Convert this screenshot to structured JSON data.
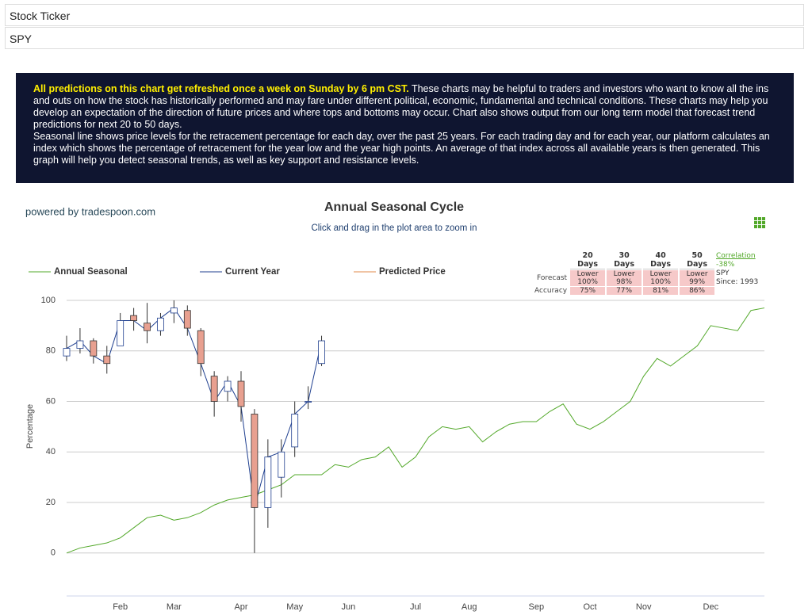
{
  "header": {
    "label": "Stock Ticker",
    "ticker": "SPY"
  },
  "banner": {
    "highlight": "All predictions on this chart get refreshed once a week on Sunday by 6 pm CST.",
    "text": "These charts may be helpful to traders and investors who want to know all the ins and outs on how the stock has historically performed and may fare under different political, economic, fundamental and technical conditions. These charts may help you develop an expectation of the direction of future prices and where tops and bottoms may occur. Chart also shows output from our long term model that forecast trend predictions for next 20 to 50 days.",
    "text2": "Seasonal line shows price levels for the retracement percentage for each day, over the past 25 years. For each trading day and for each year, our platform calculates an index which shows the percentage of retracement for the year low and the year high points. An average of that index across all available years is then generated. This graph will help you detect seasonal trends, as well as key support and resistance levels."
  },
  "credit": "powered by tradespoon.com",
  "forecast_table": {
    "columns": [
      "20 Days",
      "30 Days",
      "40 Days",
      "50 Days"
    ],
    "row_labels": [
      "Forecast",
      "Accuracy"
    ],
    "forecast": [
      [
        "Lower",
        "100%"
      ],
      [
        "Lower",
        "98%"
      ],
      [
        "Lower",
        "100%"
      ],
      [
        "Lower",
        "99%"
      ]
    ],
    "accuracy": [
      "75%",
      "77%",
      "81%",
      "86%"
    ],
    "correlation": {
      "label": "Correlation",
      "value": "-38%",
      "ticker": "SPY",
      "since": "Since: 1993"
    }
  },
  "chart_data": {
    "type": "line",
    "title": "Annual Seasonal Cycle",
    "subtitle": "Click and drag in the plot area to zoom in",
    "y_label": "Percentage",
    "categories": [
      null,
      null,
      null,
      null,
      "Feb",
      null,
      null,
      null,
      "Mar",
      null,
      null,
      null,
      null,
      "Apr",
      null,
      null,
      null,
      "May",
      null,
      null,
      null,
      "Jun",
      null,
      null,
      null,
      null,
      "Jul",
      null,
      null,
      null,
      "Aug",
      null,
      null,
      null,
      null,
      "Sep",
      null,
      null,
      null,
      "Oct",
      null,
      null,
      null,
      "Nov",
      null,
      null,
      null,
      null,
      "Dec",
      null,
      null,
      null,
      null
    ],
    "ylim": [
      -17,
      100
    ],
    "yticks": [
      0,
      20,
      40,
      60,
      80,
      100
    ],
    "grid": true,
    "series": [
      {
        "name": "Annual Seasonal",
        "color": "#52a829",
        "values": [
          0,
          2,
          3,
          4,
          6,
          10,
          14,
          15,
          13,
          14,
          16,
          19,
          21,
          22,
          23,
          25,
          27,
          31,
          31,
          31,
          35,
          34,
          37,
          38,
          42,
          34,
          38,
          46,
          50,
          49,
          50,
          44,
          48,
          51,
          52,
          52,
          56,
          59,
          51,
          49,
          52,
          56,
          60,
          70,
          77,
          74,
          78,
          82,
          90,
          89,
          88,
          96,
          97
        ]
      },
      {
        "name": "Current Year",
        "color": "#1f3f8f",
        "down_color": "#e8a090",
        "open": [
          78,
          81,
          84,
          78,
          82,
          94,
          91,
          88,
          95,
          96,
          88,
          70,
          64,
          68,
          55,
          18,
          30,
          42,
          60,
          75,
          null,
          null,
          null,
          null,
          null,
          null,
          null,
          null,
          null,
          null,
          null,
          null,
          null,
          null,
          null,
          null,
          null,
          null,
          null,
          null,
          null,
          null,
          null,
          null,
          null,
          null,
          null,
          null,
          null,
          null,
          null,
          null,
          null
        ],
        "high": [
          86,
          89,
          85,
          82,
          95,
          97,
          99,
          95,
          100,
          98,
          89,
          72,
          70,
          72,
          57,
          45,
          45,
          60,
          66,
          86,
          null,
          null,
          null,
          null,
          null,
          null,
          null,
          null,
          null,
          null,
          null,
          null,
          null,
          null,
          null,
          null,
          null,
          null,
          null,
          null,
          null,
          null,
          null,
          null,
          null,
          null,
          null,
          null,
          null,
          null,
          null,
          null,
          null
        ],
        "low": [
          76,
          79,
          75,
          71,
          82,
          88,
          83,
          86,
          91,
          86,
          70,
          54,
          60,
          52,
          0,
          10,
          22,
          38,
          57,
          74,
          null,
          null,
          null,
          null,
          null,
          null,
          null,
          null,
          null,
          null,
          null,
          null,
          null,
          null,
          null,
          null,
          null,
          null,
          null,
          null,
          null,
          null,
          null,
          null,
          null,
          null,
          null,
          null,
          null,
          null,
          null,
          null,
          null
        ],
        "close": [
          81,
          84,
          78,
          75,
          92,
          92,
          88,
          93,
          97,
          89,
          75,
          60,
          68,
          58,
          18,
          38,
          40,
          55,
          60,
          84,
          null,
          null,
          null,
          null,
          null,
          null,
          null,
          null,
          null,
          null,
          null,
          null,
          null,
          null,
          null,
          null,
          null,
          null,
          null,
          null,
          null,
          null,
          null,
          null,
          null,
          null,
          null,
          null,
          null,
          null,
          null,
          null,
          null
        ]
      },
      {
        "name": "Predicted Price",
        "color": "#e08a4a"
      }
    ]
  }
}
